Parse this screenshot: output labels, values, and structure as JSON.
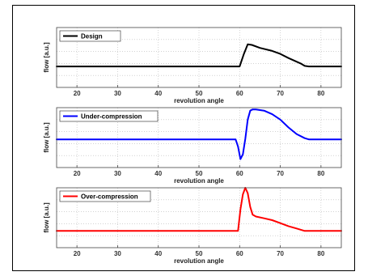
{
  "chart_data": [
    {
      "type": "line",
      "xlabel": "revolution angle",
      "ylabel": "flow [a.u.]",
      "xlim": [
        15,
        85
      ],
      "ylim": [
        0,
        1
      ],
      "xticks": [
        20,
        30,
        40,
        50,
        60,
        70,
        80
      ],
      "grid": true,
      "legend_position": "top-left",
      "series": [
        {
          "name": "Design",
          "color": "#000000",
          "x": [
            15,
            60,
            61,
            62,
            63,
            65,
            68,
            70,
            72,
            75,
            76,
            77,
            85
          ],
          "y": [
            0.35,
            0.35,
            0.55,
            0.72,
            0.71,
            0.66,
            0.61,
            0.56,
            0.49,
            0.4,
            0.36,
            0.35,
            0.35
          ]
        }
      ]
    },
    {
      "type": "line",
      "xlabel": "revolution angle",
      "ylabel": "flow [a.u.]",
      "xlim": [
        15,
        85
      ],
      "ylim": [
        0,
        1
      ],
      "xticks": [
        20,
        30,
        40,
        50,
        60,
        70,
        80
      ],
      "grid": true,
      "legend_position": "top-left",
      "series": [
        {
          "name": "Under-compression",
          "color": "#0000ff",
          "x": [
            15,
            59,
            59.6,
            60.2,
            60.8,
            61.4,
            62,
            62.6,
            63.2,
            64,
            66,
            68,
            70,
            72,
            74,
            76,
            77,
            85
          ],
          "y": [
            0.47,
            0.47,
            0.35,
            0.14,
            0.22,
            0.48,
            0.8,
            0.95,
            0.97,
            0.97,
            0.95,
            0.89,
            0.8,
            0.67,
            0.56,
            0.49,
            0.47,
            0.47
          ]
        }
      ]
    },
    {
      "type": "line",
      "xlabel": "revolution angle",
      "ylabel": "flow [a.u.]",
      "xlim": [
        15,
        85
      ],
      "ylim": [
        0,
        1
      ],
      "xticks": [
        20,
        30,
        40,
        50,
        60,
        70,
        80
      ],
      "grid": true,
      "legend_position": "top-left",
      "series": [
        {
          "name": "Over-compression",
          "color": "#ff0000",
          "x": [
            15,
            59.6,
            60.2,
            60.8,
            61.4,
            62,
            62.6,
            63.2,
            64,
            66,
            68,
            70,
            72,
            74,
            76,
            77,
            85
          ],
          "y": [
            0.28,
            0.28,
            0.64,
            0.89,
            1.0,
            0.91,
            0.68,
            0.55,
            0.52,
            0.49,
            0.46,
            0.41,
            0.36,
            0.32,
            0.28,
            0.28,
            0.28
          ]
        }
      ]
    }
  ]
}
